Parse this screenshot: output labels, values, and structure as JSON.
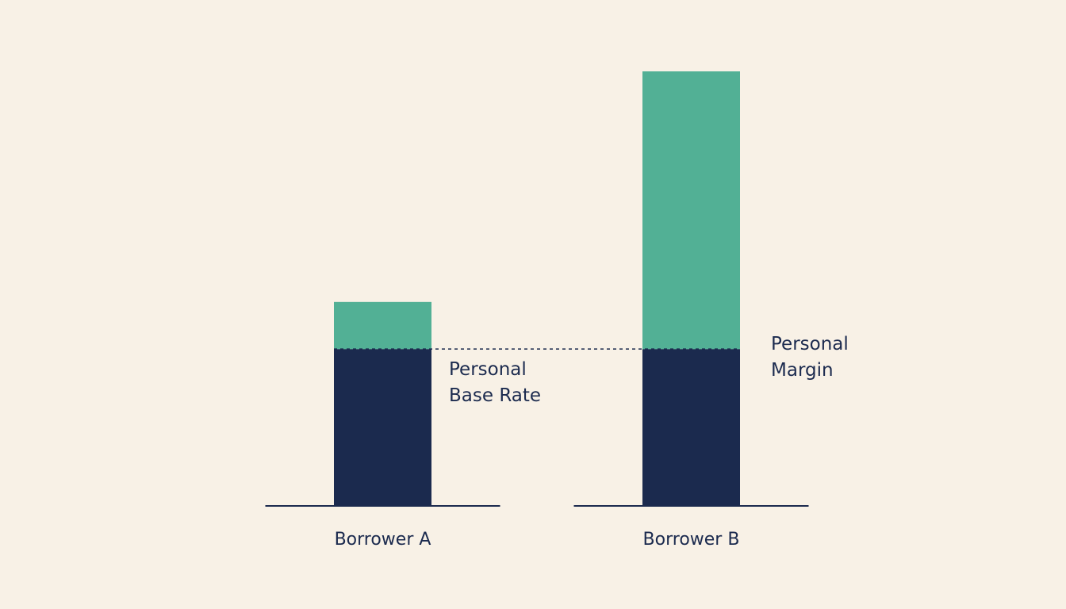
{
  "chart_data": {
    "type": "bar",
    "stacked": true,
    "categories": [
      "Borrower A",
      "Borrower B"
    ],
    "series": [
      {
        "name": "Personal Base Rate",
        "color": "#1b2a4e",
        "values": [
          100,
          100
        ]
      },
      {
        "name": "Personal Margin",
        "color": "#52b095",
        "values": [
          30,
          177
        ]
      }
    ]
  }
}
